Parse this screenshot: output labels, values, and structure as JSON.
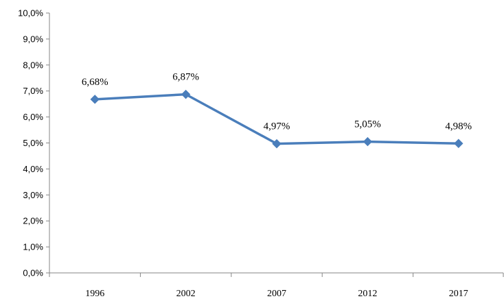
{
  "chart_data": {
    "type": "line",
    "title": "",
    "xlabel": "",
    "ylabel": "",
    "categories": [
      "1996",
      "2002",
      "2007",
      "2012",
      "2017"
    ],
    "series": [
      {
        "values": [
          6.68,
          6.87,
          4.97,
          5.05,
          4.98
        ],
        "data_labels": [
          "6,68%",
          "6,87%",
          "4,97%",
          "5,05%",
          "4,98%"
        ],
        "color": "#4a7ebb",
        "marker": "diamond"
      }
    ],
    "ylim": [
      0,
      10
    ],
    "ytick_labels": [
      "0,0%",
      "1,0%",
      "2,0%",
      "3,0%",
      "4,0%",
      "5,0%",
      "6,0%",
      "7,0%",
      "8,0%",
      "9,0%",
      "10,0%"
    ],
    "grid": false,
    "legend": "none"
  }
}
